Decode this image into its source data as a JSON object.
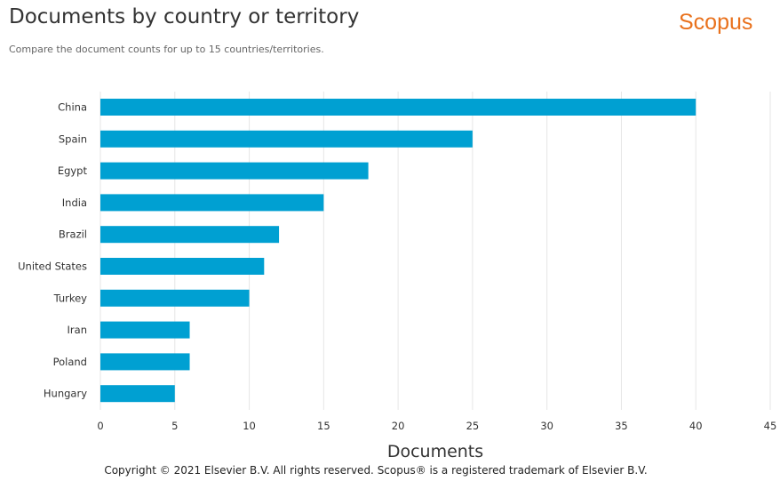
{
  "header": {
    "title": "Documents by country or territory",
    "subtitle": "Compare the document counts for up to 15 countries/territories.",
    "brand": "Scopus"
  },
  "footer": {
    "copyright": "Copyright © 2021 Elsevier B.V. All rights reserved. Scopus® is a registered trademark of Elsevier B.V."
  },
  "colors": {
    "bar": "#00a0d2",
    "grid": "#e6e6e6",
    "brand": "#e9711c"
  },
  "chart_data": {
    "type": "bar",
    "orientation": "horizontal",
    "title": "Documents by country or territory",
    "subtitle": "Compare the document counts for up to 15 countries/territories.",
    "xlabel": "Documents",
    "ylabel": "",
    "categories": [
      "China",
      "Spain",
      "Egypt",
      "India",
      "Brazil",
      "United States",
      "Turkey",
      "Iran",
      "Poland",
      "Hungary"
    ],
    "values": [
      40,
      25,
      18,
      15,
      12,
      11,
      10,
      6,
      6,
      5
    ],
    "xlim": [
      0,
      45
    ],
    "xticks": [
      0,
      5,
      10,
      15,
      20,
      25,
      30,
      35,
      40,
      45
    ],
    "grid": true,
    "legend": "none"
  }
}
